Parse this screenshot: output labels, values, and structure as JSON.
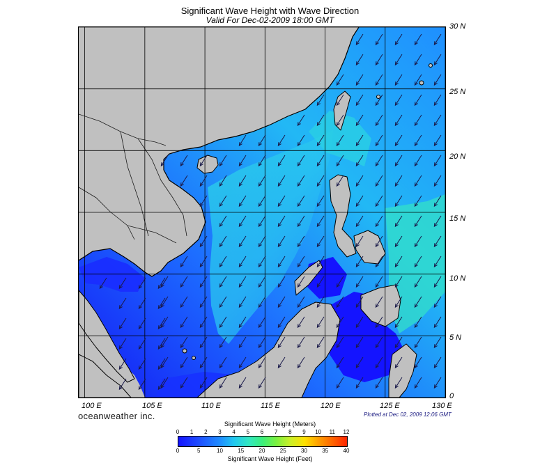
{
  "header": {
    "title": "Significant Wave Height with Wave Direction",
    "subtitle": "Valid For Dec-02-2009 18:00 GMT"
  },
  "map": {
    "lat_labels": [
      "30 N",
      "25 N",
      "20 N",
      "15 N",
      "10 N",
      "5 N",
      "0"
    ],
    "lon_labels": [
      "100 E",
      "105 E",
      "110 E",
      "115 E",
      "120 E",
      "125 E",
      "130 E"
    ],
    "lat_range": [
      0,
      30
    ],
    "lon_range": [
      99.5,
      130
    ],
    "grid": true,
    "land_color": "#c0c0c0",
    "sea_colors": [
      "#1414ff",
      "#1f8fff",
      "#33e8c0"
    ],
    "arrow_direction": "toward southwest"
  },
  "footer": {
    "brand": "oceanweather inc.",
    "plotted": "Plotted at Dec 02, 2009 12:06 GMT"
  },
  "legend": {
    "meters_title": "Significant Wave Height (Meters)",
    "feet_title": "Significant Wave Height (Feet)",
    "meters_ticks": [
      "0",
      "1",
      "2",
      "3",
      "4",
      "5",
      "6",
      "7",
      "8",
      "9",
      "10",
      "11",
      "12"
    ],
    "feet_ticks": [
      "0",
      "5",
      "10",
      "15",
      "20",
      "25",
      "30",
      "35",
      "40"
    ],
    "colors": [
      "#1414ff",
      "#1e4cff",
      "#1f8fff",
      "#20c8f0",
      "#33e8c0",
      "#3cef7a",
      "#7af040",
      "#c8f02a",
      "#ffe000",
      "#ffa000",
      "#ff6000",
      "#ff2400"
    ]
  }
}
